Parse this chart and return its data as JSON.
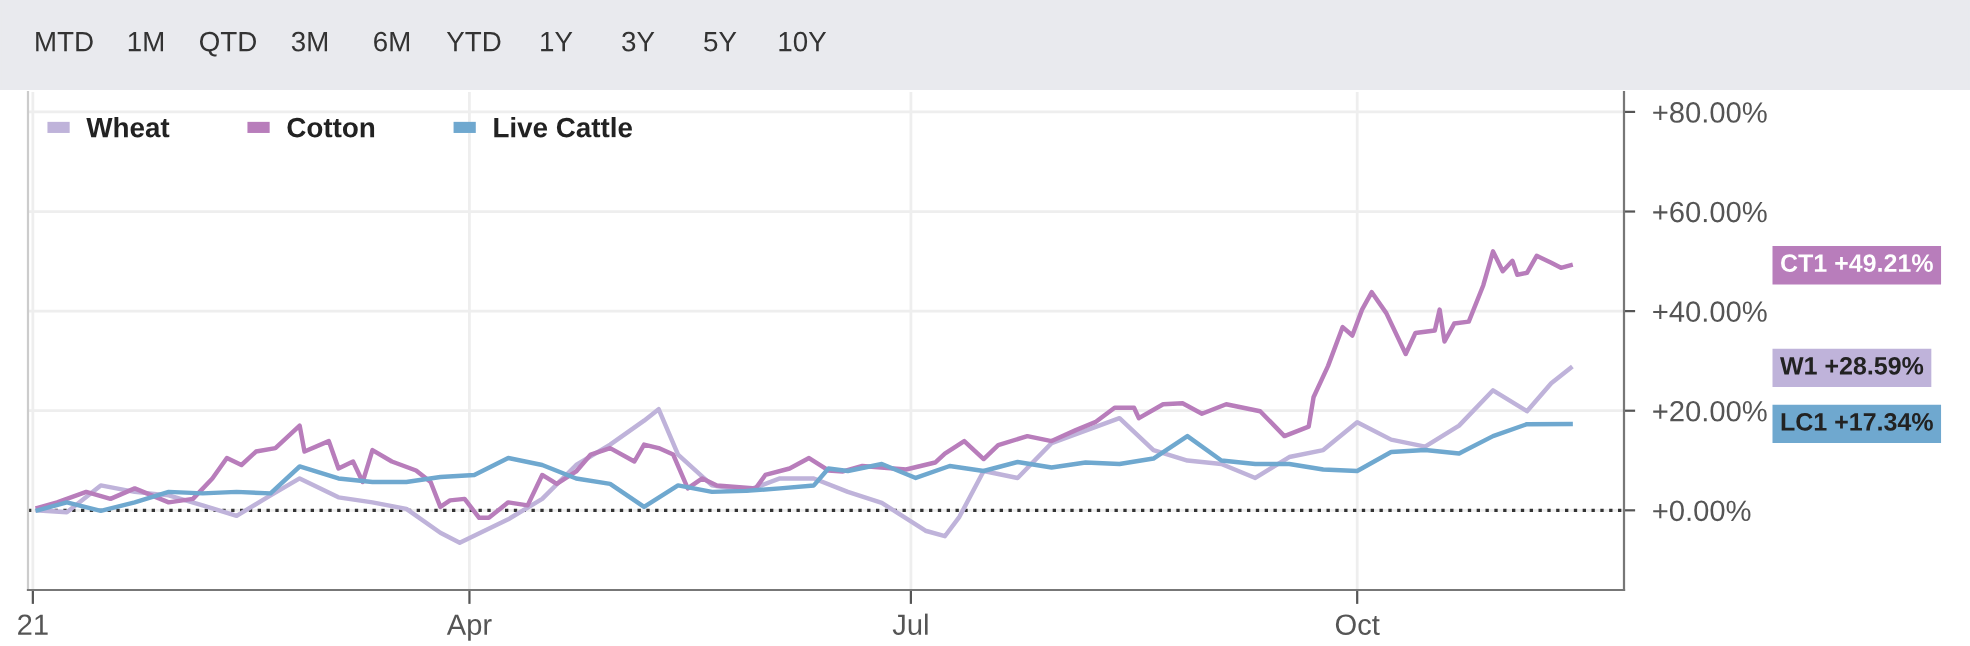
{
  "chart_data": {
    "type": "line",
    "xlim": [
      "2020-12-31",
      "2021-11-25"
    ],
    "xticks": [
      {
        "value": "2021-01-01",
        "label": "21"
      },
      {
        "value": "2021-04-01",
        "label": "Apr"
      },
      {
        "value": "2021-07-01",
        "label": "Jul"
      },
      {
        "value": "2021-10-01",
        "label": "Oct"
      }
    ],
    "ylim": [
      -16,
      84
    ],
    "yticks": [
      {
        "value": 0,
        "label": "+0.00%"
      },
      {
        "value": 20,
        "label": "+20.00%"
      },
      {
        "value": 40,
        "label": "+40.00%"
      },
      {
        "value": 60,
        "label": "+60.00%"
      },
      {
        "value": 80,
        "label": "+80.00%"
      }
    ],
    "grid": true,
    "legend": "top left",
    "marker": "none",
    "line_style": "solid",
    "ref_lines": [
      {
        "axis": "y",
        "value": 0,
        "color": "#333333",
        "line_style": "dotted"
      }
    ],
    "series": [
      {
        "name": "Wheat",
        "color": "#bfb3da",
        "x": [
          "2021-01-02",
          "2021-01-08",
          "2021-01-15",
          "2021-01-22",
          "2021-01-29",
          "2021-02-05",
          "2021-02-12",
          "2021-02-19",
          "2021-02-25",
          "2021-03-05",
          "2021-03-12",
          "2021-03-19",
          "2021-03-26",
          "2021-03-30",
          "2021-04-09",
          "2021-04-16",
          "2021-04-23",
          "2021-04-30",
          "2021-05-07",
          "2021-05-10",
          "2021-05-14",
          "2021-05-21",
          "2021-05-28",
          "2021-06-04",
          "2021-06-11",
          "2021-06-18",
          "2021-06-25",
          "2021-07-04",
          "2021-07-08",
          "2021-07-11",
          "2021-07-16",
          "2021-07-23",
          "2021-07-30",
          "2021-08-13",
          "2021-08-20",
          "2021-08-27",
          "2021-09-03",
          "2021-09-10",
          "2021-09-17",
          "2021-09-24",
          "2021-10-01",
          "2021-10-08",
          "2021-10-15",
          "2021-10-22",
          "2021-10-29",
          "2021-11-05",
          "2021-11-10",
          "2021-11-14"
        ],
        "values": [
          0,
          -0.4,
          5.0,
          3.7,
          3.0,
          1.0,
          -1.1,
          3.0,
          6.4,
          2.6,
          1.6,
          0.3,
          -4.5,
          -6.5,
          -1.8,
          2.3,
          9.1,
          13.2,
          18.0,
          20.3,
          11.2,
          5.0,
          3.9,
          6.4,
          6.4,
          3.7,
          1.5,
          -4.1,
          -5.2,
          -1.3,
          7.9,
          6.5,
          13.5,
          18.5,
          12.1,
          10.0,
          9.3,
          6.5,
          10.7,
          12.1,
          17.7,
          14.2,
          12.8,
          17.0,
          24.1,
          19.9,
          25.5,
          28.59
        ]
      },
      {
        "name": "Cotton",
        "color": "#b87dbb",
        "x": [
          "2021-01-02",
          "2021-01-06",
          "2021-01-12",
          "2021-01-17",
          "2021-01-22",
          "2021-01-29",
          "2021-02-03",
          "2021-02-07",
          "2021-02-10",
          "2021-02-13",
          "2021-02-16",
          "2021-02-20",
          "2021-02-25",
          "2021-02-26",
          "2021-03-03",
          "2021-03-05",
          "2021-03-08",
          "2021-03-10",
          "2021-03-12",
          "2021-03-16",
          "2021-03-21",
          "2021-03-24",
          "2021-03-26",
          "2021-03-28",
          "2021-03-31",
          "2021-04-03",
          "2021-04-05",
          "2021-04-09",
          "2021-04-13",
          "2021-04-16",
          "2021-04-19",
          "2021-04-23",
          "2021-04-26",
          "2021-04-30",
          "2021-05-05",
          "2021-05-07",
          "2021-05-10",
          "2021-05-13",
          "2021-05-16",
          "2021-05-19",
          "2021-05-22",
          "2021-05-30",
          "2021-06-01",
          "2021-06-06",
          "2021-06-10",
          "2021-06-14",
          "2021-06-17",
          "2021-06-21",
          "2021-06-30",
          "2021-07-06",
          "2021-07-08",
          "2021-07-12",
          "2021-07-16",
          "2021-07-19",
          "2021-07-25",
          "2021-07-30",
          "2021-08-04",
          "2021-08-08",
          "2021-08-12",
          "2021-08-16",
          "2021-08-17",
          "2021-08-22",
          "2021-08-26",
          "2021-08-30",
          "2021-09-04",
          "2021-09-11",
          "2021-09-16",
          "2021-09-21",
          "2021-09-22",
          "2021-09-25",
          "2021-09-28",
          "2021-09-30",
          "2021-10-02",
          "2021-10-04",
          "2021-10-07",
          "2021-10-11",
          "2021-10-13",
          "2021-10-17",
          "2021-10-18",
          "2021-10-19",
          "2021-10-21",
          "2021-10-24",
          "2021-10-27",
          "2021-10-29",
          "2021-10-31",
          "2021-11-02",
          "2021-11-03",
          "2021-11-05",
          "2021-11-07",
          "2021-11-10",
          "2021-11-12",
          "2021-11-14"
        ],
        "values": [
          0.5,
          1.6,
          3.7,
          2.3,
          4.4,
          1.6,
          2.3,
          6.4,
          10.5,
          9.1,
          11.8,
          12.5,
          17.0,
          11.8,
          13.9,
          8.4,
          9.8,
          5.7,
          12.1,
          9.8,
          8.0,
          5.7,
          0.7,
          2.0,
          2.3,
          -1.5,
          -1.5,
          1.6,
          1.0,
          7.1,
          5.3,
          7.8,
          11.2,
          12.5,
          9.8,
          13.2,
          12.5,
          11.2,
          4.4,
          6.4,
          5.0,
          4.4,
          7.1,
          8.4,
          10.5,
          8.0,
          7.8,
          8.9,
          8.2,
          9.6,
          11.4,
          13.9,
          10.3,
          13.1,
          14.9,
          13.9,
          16.1,
          17.7,
          20.6,
          20.6,
          18.5,
          21.3,
          21.5,
          19.4,
          21.3,
          19.9,
          14.9,
          16.8,
          22.7,
          29.0,
          36.8,
          35.1,
          40.3,
          43.8,
          39.6,
          31.4,
          35.6,
          36.1,
          40.3,
          33.9,
          37.5,
          37.9,
          45.2,
          52.0,
          48.0,
          50.1,
          47.3,
          47.7,
          51.1,
          49.7,
          48.7,
          49.21
        ]
      },
      {
        "name": "Live Cattle",
        "color": "#6fa8cf",
        "x": [
          "2021-01-02",
          "2021-01-08",
          "2021-01-15",
          "2021-01-22",
          "2021-01-29",
          "2021-02-05",
          "2021-02-12",
          "2021-02-19",
          "2021-02-25",
          "2021-03-05",
          "2021-03-12",
          "2021-03-19",
          "2021-03-26",
          "2021-04-02",
          "2021-04-09",
          "2021-04-16",
          "2021-04-23",
          "2021-04-30",
          "2021-05-07",
          "2021-05-14",
          "2021-05-21",
          "2021-05-28",
          "2021-06-04",
          "2021-06-11",
          "2021-06-14",
          "2021-06-18",
          "2021-06-25",
          "2021-07-02",
          "2021-07-09",
          "2021-07-16",
          "2021-07-23",
          "2021-07-30",
          "2021-08-06",
          "2021-08-13",
          "2021-08-20",
          "2021-08-27",
          "2021-09-03",
          "2021-09-10",
          "2021-09-17",
          "2021-09-24",
          "2021-10-01",
          "2021-10-08",
          "2021-10-15",
          "2021-10-22",
          "2021-10-29",
          "2021-11-05",
          "2021-11-14"
        ],
        "values": [
          0,
          1.6,
          -0.1,
          1.6,
          3.7,
          3.4,
          3.7,
          3.4,
          8.8,
          6.4,
          5.7,
          5.7,
          6.7,
          7.1,
          10.5,
          9.1,
          6.4,
          5.3,
          0.7,
          5.0,
          3.7,
          3.9,
          4.4,
          5.0,
          8.4,
          7.9,
          9.3,
          6.5,
          8.9,
          7.9,
          9.7,
          8.6,
          9.6,
          9.3,
          10.4,
          14.9,
          10.0,
          9.3,
          9.3,
          8.2,
          7.9,
          11.7,
          12.1,
          11.4,
          14.9,
          17.3,
          17.34
        ]
      }
    ],
    "annotations": [
      "MTD",
      "1M",
      "QTD",
      "3M",
      "6M",
      "YTD",
      "1Y",
      "3Y",
      "5Y",
      "10Y",
      "W1 +28.59%",
      "CT1 +49.21%",
      "LC1 +17.34%"
    ]
  }
}
